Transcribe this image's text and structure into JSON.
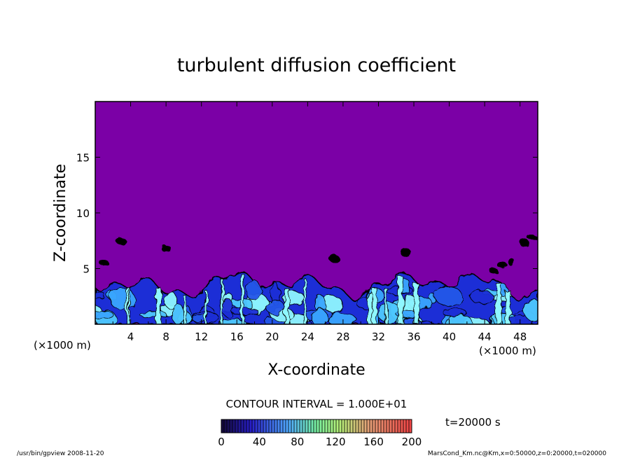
{
  "chart_data": {
    "type": "heatmap",
    "title": "turbulent diffusion coefficient",
    "xlabel": "X-coordinate",
    "ylabel": "Z-coordinate",
    "x_unit": "(×1000 m)",
    "x_unit_right": "(×1000 m)",
    "xlim": [
      0,
      50
    ],
    "ylim": [
      0,
      20
    ],
    "xticks": [
      4,
      8,
      12,
      16,
      20,
      24,
      28,
      32,
      36,
      40,
      44,
      48
    ],
    "yticks": [
      5,
      10,
      15
    ],
    "contour_interval": "CONTOUR INTERVAL = 1.000E+01",
    "time_label": "t=20000 s",
    "colorbar": {
      "min": 0,
      "max": 200,
      "ticks": [
        0,
        40,
        80,
        120,
        160,
        200
      ]
    },
    "colors": {
      "background_field": "#7b00a6",
      "low": "#1b2fd6",
      "mid": "#3aa6ff",
      "high": "#8ff7ff"
    }
  },
  "footer": {
    "left": "/usr/bin/gpview   2008-11-20",
    "right": "MarsCond_Km.nc@Km,x=0:50000,z=0:20000,t=020000"
  }
}
